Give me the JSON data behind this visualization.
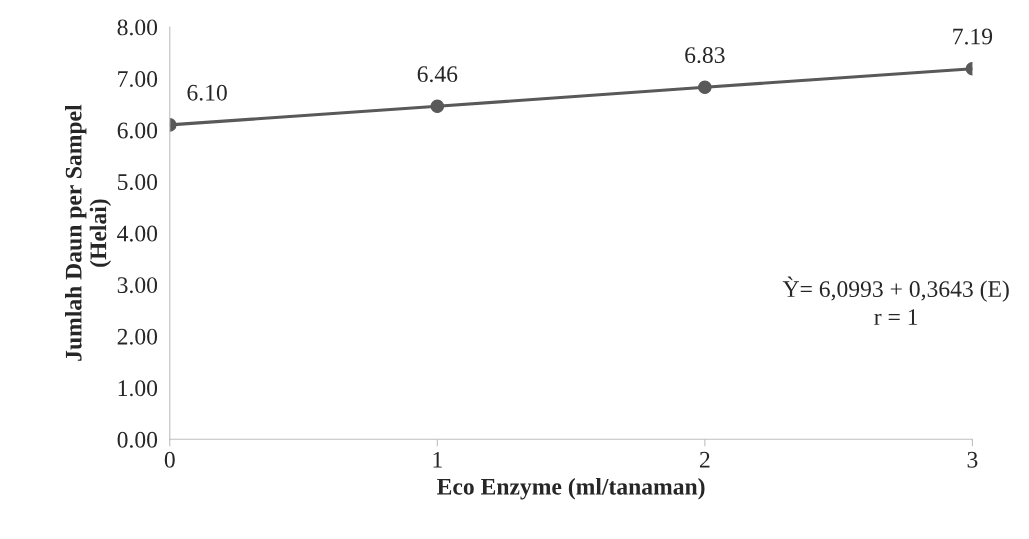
{
  "chart_data": {
    "type": "line",
    "xlabel": "Eco Enzyme (ml/tanaman)",
    "ylabel": "Jumlah Daun per Sampel\n(Helai)",
    "x": [
      0,
      1,
      2,
      3
    ],
    "series": [
      {
        "color": "#595959",
        "values": [
          6.1,
          6.46,
          6.83,
          7.19
        ],
        "value_labels": [
          "6.10",
          "6.46",
          "6.83",
          "7.19"
        ],
        "marker": "circle",
        "line_style": "solid"
      }
    ],
    "xlim": [
      0,
      3
    ],
    "xticks": [
      0,
      1,
      2,
      3
    ],
    "ylim": [
      0,
      8
    ],
    "yticks": [
      {
        "value": 0,
        "label": "0.00"
      },
      {
        "value": 1,
        "label": "1.00"
      },
      {
        "value": 2,
        "label": "2.00"
      },
      {
        "value": 3,
        "label": "3.00"
      },
      {
        "value": 4,
        "label": "4.00"
      },
      {
        "value": 5,
        "label": "5.00"
      },
      {
        "value": 6,
        "label": "6.00"
      },
      {
        "value": 7,
        "label": "7.00"
      },
      {
        "value": 8,
        "label": "8.00"
      }
    ],
    "annotations": [
      "Ỳ= 6,0993 + 0,3643 (E)\nr = 1"
    ],
    "grid": false,
    "legend": false
  }
}
